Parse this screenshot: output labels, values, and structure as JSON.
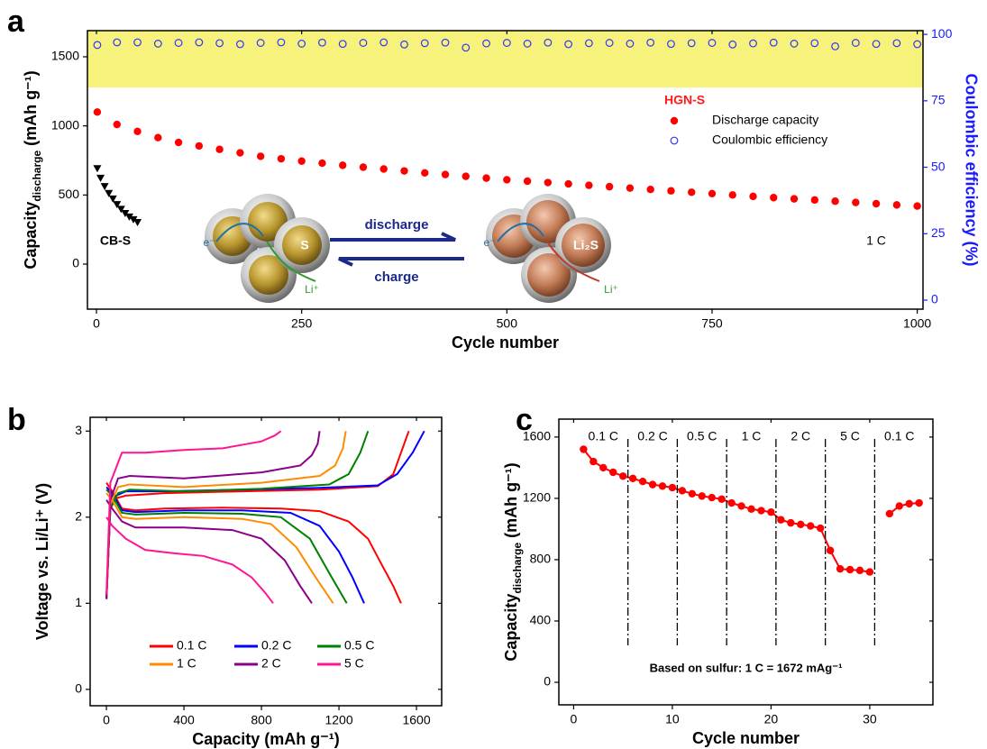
{
  "chart_data": [
    {
      "type": "scatter",
      "panel": "a",
      "x_label": "Cycle number",
      "y_label": {
        "main": "Capacity",
        "sub": "discharge",
        "unit": " (mAh g⁻¹)"
      },
      "y2_label": "Coulombic efficiency (%)",
      "y2_color": "#1a1aff",
      "xlim": [
        -11,
        1007
      ],
      "xticks": [
        0,
        250,
        500,
        750,
        1000
      ],
      "ylim": [
        -326,
        1689
      ],
      "yticks": [
        0,
        500,
        1000,
        1500
      ],
      "y2lim": [
        -3.4,
        101.4
      ],
      "y2ticks": [
        0,
        25,
        50,
        75,
        100
      ],
      "shaded_y2_range": [
        80,
        101.4
      ],
      "shade_color": "#f6f27c",
      "legend_title": "HGN-S",
      "legend_title_color": "#ff1a1a",
      "series": [
        {
          "name": "Discharge capacity",
          "color": "#ff0000",
          "marker": "filled-circle",
          "x": [
            1,
            25,
            50,
            75,
            100,
            125,
            150,
            175,
            200,
            225,
            250,
            275,
            300,
            325,
            350,
            375,
            400,
            425,
            450,
            475,
            500,
            525,
            550,
            575,
            600,
            625,
            650,
            675,
            700,
            725,
            750,
            775,
            800,
            825,
            850,
            875,
            900,
            925,
            950,
            975,
            1000
          ],
          "values": [
            1100,
            1010,
            960,
            915,
            880,
            855,
            830,
            805,
            780,
            762,
            745,
            730,
            715,
            701,
            688,
            674,
            660,
            648,
            635,
            622,
            610,
            600,
            590,
            580,
            570,
            560,
            550,
            540,
            530,
            520,
            510,
            500,
            490,
            481,
            472,
            464,
            455,
            446,
            437,
            428,
            420
          ]
        },
        {
          "name": "Coulombic efficiency",
          "color": "#3333ff",
          "marker": "open-circle",
          "axis": "y2",
          "x": [
            1,
            25,
            50,
            75,
            100,
            125,
            150,
            175,
            200,
            225,
            250,
            275,
            300,
            325,
            350,
            375,
            400,
            425,
            450,
            475,
            500,
            525,
            550,
            575,
            600,
            625,
            650,
            675,
            700,
            725,
            750,
            775,
            800,
            825,
            850,
            875,
            900,
            925,
            950,
            975,
            1000
          ],
          "values": [
            96,
            97,
            97,
            96.5,
            96.8,
            97,
            96.7,
            96.3,
            96.8,
            97,
            96.5,
            96.9,
            96.4,
            96.8,
            97,
            96.2,
            96.7,
            96.9,
            95,
            96.6,
            96.8,
            96.5,
            96.9,
            96.3,
            96.7,
            96.8,
            96.5,
            96.9,
            96.4,
            96.7,
            96.8,
            96.2,
            96.6,
            96.9,
            96.5,
            96.7,
            95.5,
            96.8,
            96.4,
            96.7,
            96.3
          ]
        },
        {
          "color": "#000000",
          "marker": "triangle-down",
          "x": [
            1,
            5,
            10,
            15,
            20,
            25,
            30,
            35,
            40,
            45,
            50
          ],
          "values": [
            690,
            620,
            560,
            510,
            470,
            430,
            395,
            365,
            340,
            320,
            300
          ]
        }
      ],
      "annotations": [
        "CB-S",
        "1 C"
      ],
      "inset": {
        "forward": "discharge",
        "backward": "charge",
        "reactant": "S",
        "product": "Li₂S",
        "electron": "e⁻",
        "ion": "Li⁺"
      }
    },
    {
      "type": "line",
      "panel": "b",
      "x_label": "Capacity (mAh g⁻¹)",
      "y_label": {
        "main": "Voltage vs. Li/Li⁺ (V)"
      },
      "xlim": [
        -84,
        1730
      ],
      "xticks": [
        0,
        400,
        800,
        1200,
        1600
      ],
      "ylim": [
        -0.19,
        3.16
      ],
      "yticks": [
        0,
        1,
        2,
        3
      ],
      "series": [
        {
          "name": "0.1 C",
          "color": "#ff0000",
          "x": [
            0,
            30,
            80,
            150,
            300,
            600,
            900,
            1100,
            1250,
            1350,
            1420,
            1480,
            1520,
            null,
            0,
            20,
            50,
            100,
            300,
            700,
            1100,
            1400,
            1480,
            1520,
            1560
          ],
          "values": [
            2.4,
            2.3,
            2.1,
            2.08,
            2.1,
            2.11,
            2.1,
            2.07,
            1.95,
            1.75,
            1.45,
            1.2,
            1.0,
            null,
            1.05,
            2.1,
            2.22,
            2.25,
            2.28,
            2.3,
            2.32,
            2.36,
            2.5,
            2.75,
            3.0
          ]
        },
        {
          "name": "0.2 C",
          "color": "#0000ff",
          "x": [
            0,
            30,
            80,
            150,
            400,
            700,
            950,
            1100,
            1200,
            1270,
            1330,
            null,
            0,
            20,
            50,
            100,
            300,
            700,
            1100,
            1400,
            1500,
            1580,
            1640
          ],
          "values": [
            2.35,
            2.28,
            2.08,
            2.06,
            2.08,
            2.08,
            2.05,
            1.9,
            1.6,
            1.3,
            1.0,
            null,
            1.05,
            2.1,
            2.25,
            2.3,
            2.3,
            2.32,
            2.34,
            2.37,
            2.5,
            2.75,
            3.0
          ]
        },
        {
          "name": "0.5 C",
          "color": "#008000",
          "x": [
            0,
            30,
            80,
            150,
            400,
            700,
            900,
            1050,
            1150,
            1240,
            null,
            0,
            20,
            60,
            120,
            400,
            800,
            1150,
            1250,
            1310,
            1350
          ],
          "values": [
            2.32,
            2.25,
            2.05,
            2.03,
            2.05,
            2.04,
            2.0,
            1.75,
            1.35,
            1.0,
            null,
            1.05,
            2.1,
            2.28,
            2.32,
            2.3,
            2.33,
            2.38,
            2.5,
            2.75,
            3.0
          ]
        },
        {
          "name": "1 C",
          "color": "#ff8c00",
          "x": [
            0,
            30,
            80,
            150,
            400,
            700,
            850,
            980,
            1080,
            1170,
            null,
            0,
            20,
            60,
            120,
            400,
            800,
            1100,
            1180,
            1220,
            1235
          ],
          "values": [
            2.28,
            2.2,
            2.0,
            1.98,
            2.0,
            1.98,
            1.92,
            1.65,
            1.3,
            1.0,
            null,
            1.05,
            2.15,
            2.35,
            2.38,
            2.35,
            2.4,
            2.48,
            2.6,
            2.8,
            3.0
          ]
        },
        {
          "name": "2 C",
          "color": "#8b008b",
          "x": [
            0,
            30,
            80,
            150,
            400,
            650,
            800,
            920,
            1000,
            1060,
            null,
            0,
            20,
            60,
            120,
            400,
            800,
            1000,
            1060,
            1090,
            1100
          ],
          "values": [
            2.2,
            2.1,
            1.95,
            1.88,
            1.88,
            1.85,
            1.75,
            1.5,
            1.2,
            1.0,
            null,
            1.05,
            2.2,
            2.45,
            2.48,
            2.45,
            2.52,
            2.6,
            2.72,
            2.85,
            3.0
          ]
        },
        {
          "name": "5 C",
          "color": "#ff1493",
          "x": [
            0,
            30,
            100,
            200,
            350,
            500,
            650,
            750,
            820,
            860,
            null,
            0,
            20,
            80,
            200,
            400,
            600,
            800,
            870,
            900
          ],
          "values": [
            2.0,
            1.9,
            1.75,
            1.62,
            1.58,
            1.55,
            1.45,
            1.3,
            1.12,
            1.0,
            null,
            1.1,
            2.4,
            2.75,
            2.75,
            2.78,
            2.8,
            2.88,
            2.95,
            3.0
          ]
        }
      ]
    },
    {
      "type": "line",
      "panel": "c",
      "x_label": "Cycle number",
      "y_label": {
        "main": "Capacity",
        "sub": "discharge",
        "unit": " (mAh g⁻¹)"
      },
      "xlim": [
        -1.5,
        36.4
      ],
      "xticks": [
        0,
        10,
        20,
        30
      ],
      "ylim": [
        -147,
        1717
      ],
      "yticks": [
        0,
        400,
        800,
        1200,
        1600
      ],
      "series": [
        {
          "color": "#ff0000",
          "marker": "filled-circle",
          "x": [
            1,
            2,
            3,
            4,
            5,
            6,
            7,
            8,
            9,
            10,
            11,
            12,
            13,
            14,
            15,
            16,
            17,
            18,
            19,
            20,
            21,
            22,
            23,
            24,
            25,
            26,
            27,
            28,
            29,
            30,
            31,
            32,
            33,
            34,
            35
          ],
          "values": [
            1520,
            1440,
            1400,
            1370,
            1345,
            1330,
            1310,
            1290,
            1280,
            1270,
            1250,
            1230,
            1215,
            1205,
            1195,
            1170,
            1150,
            1130,
            1120,
            1110,
            1060,
            1040,
            1030,
            1020,
            1005,
            860,
            740,
            735,
            730,
            720,
            null,
            1100,
            1150,
            1165,
            1170
          ]
        }
      ],
      "dividers": [
        5.5,
        10.5,
        15.5,
        20.5,
        25.5,
        30.5
      ],
      "rate_labels": [
        "0.1 C",
        "0.2 C",
        "0.5 C",
        "1 C",
        "2 C",
        "5 C",
        "0.1 C"
      ],
      "note": "Based on sulfur: 1 C = 1672 mAg⁻¹"
    }
  ]
}
